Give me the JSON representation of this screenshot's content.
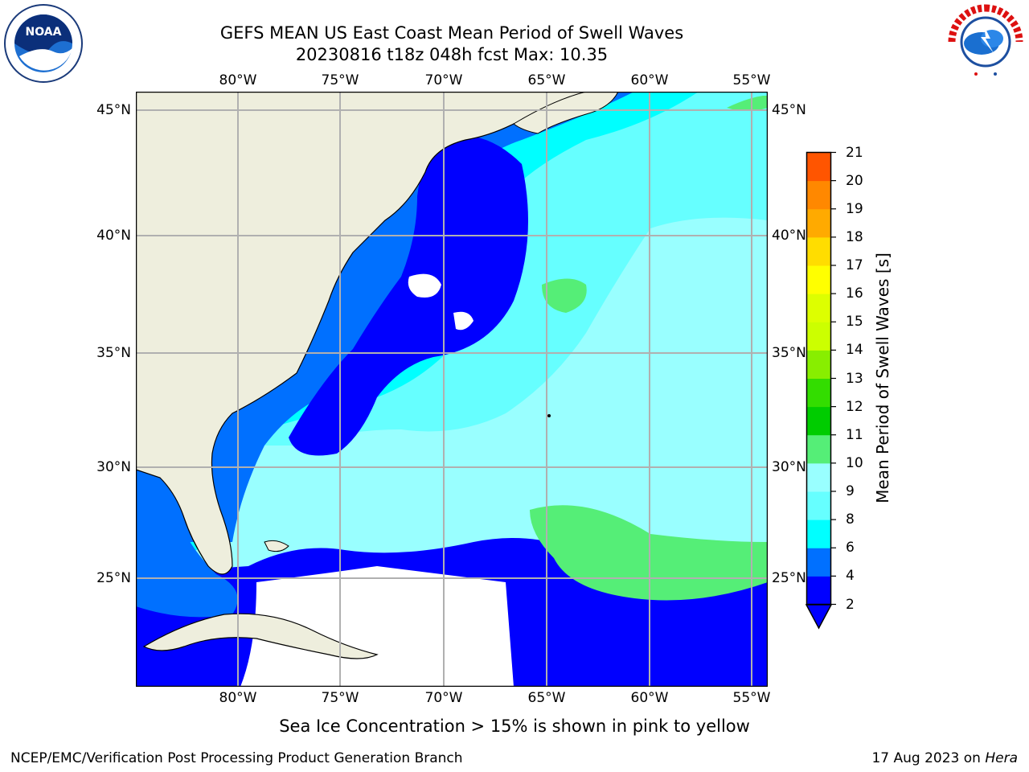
{
  "header": {
    "title_line1": "GEFS MEAN US East Coast Mean Period of Swell Waves",
    "title_line2": "20230816 t18z 048h fcst   Max: 10.35"
  },
  "logos": {
    "left": "noaa-logo",
    "right": "national-weather-service-logo",
    "right_text": "NATIONAL WEATHER SERVICE"
  },
  "map": {
    "lon_labels": [
      "80°W",
      "75°W",
      "70°W",
      "65°W",
      "60°W",
      "55°W"
    ],
    "lat_labels": [
      "45°N",
      "40°N",
      "35°N",
      "30°N",
      "25°N"
    ],
    "colors": {
      "land": "#eeeedd",
      "no_data": "#ffffff",
      "grid": "#b0b0b0"
    }
  },
  "colorbar": {
    "label": "Mean Period of Swell Waves [s]",
    "ticks": [
      "2",
      "4",
      "6",
      "8",
      "9",
      "10",
      "11",
      "12",
      "13",
      "14",
      "15",
      "16",
      "17",
      "18",
      "19",
      "20",
      "21"
    ],
    "colors": [
      "#0000ff",
      "#0070ff",
      "#00ffff",
      "#66ffff",
      "#99ffff",
      "#55ee77",
      "#00cc00",
      "#33dd00",
      "#88ee00",
      "#ccff00",
      "#ddff00",
      "#ffff00",
      "#ffdd00",
      "#ffaa00",
      "#ff8800",
      "#ff5500",
      "#ff2200",
      "#ff0000"
    ]
  },
  "footer": {
    "note": "Sea Ice Concentration > 15% is shown in pink to yellow",
    "credit_left": "NCEP/EMC/Verification Post Processing Product Generation Branch",
    "credit_right_prefix": "17 Aug 2023 on ",
    "credit_right_host": "Hera"
  }
}
